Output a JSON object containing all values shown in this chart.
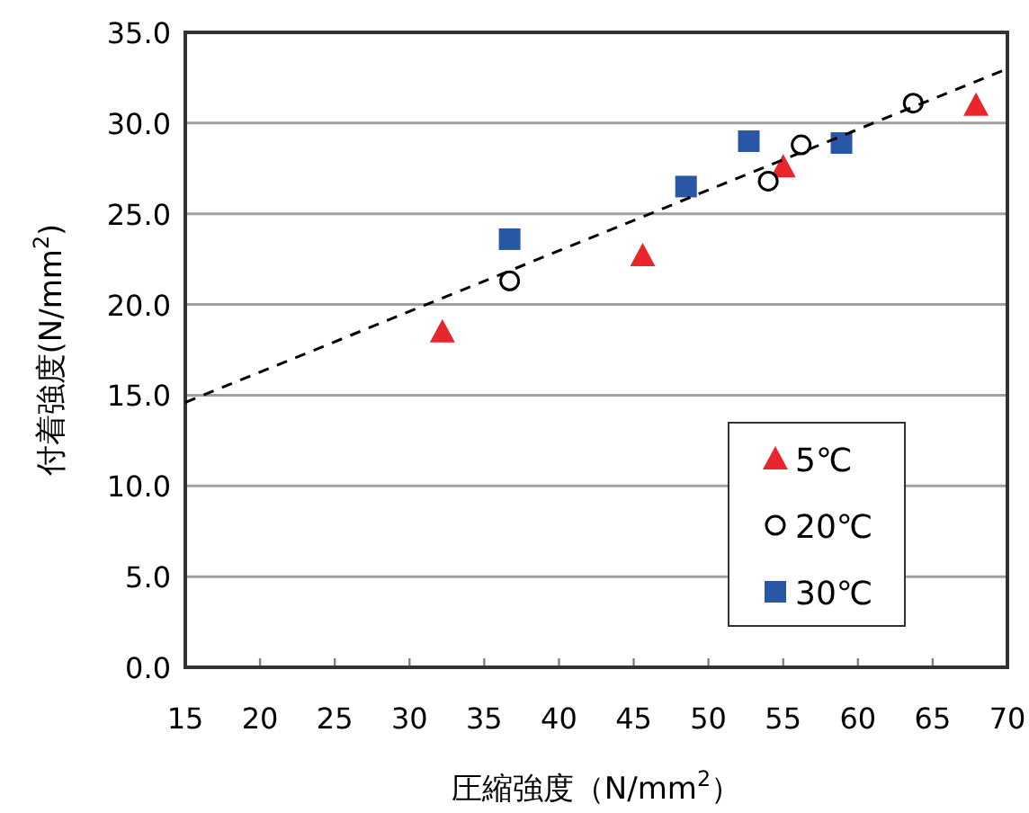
{
  "chart_data": {
    "type": "scatter",
    "xlabel": "圧縮強度（N/mm$^{2}$）",
    "ylabel": "付着強度(N/mm$^{2}$)",
    "xlim": [
      15,
      70
    ],
    "xticks": [
      15,
      20,
      25,
      30,
      35,
      40,
      45,
      50,
      55,
      60,
      65,
      70
    ],
    "ylim": [
      0,
      35
    ],
    "yticks": [
      {
        "value": 0,
        "label": "0.0"
      },
      {
        "value": 5,
        "label": "5.0"
      },
      {
        "value": 10,
        "label": "10.0"
      },
      {
        "value": 15,
        "label": "15.0"
      },
      {
        "value": 20,
        "label": "20.0"
      },
      {
        "value": 25,
        "label": "25.0"
      },
      {
        "value": 30,
        "label": "30.0"
      },
      {
        "value": 35,
        "label": "35.0"
      }
    ],
    "grid": "y",
    "legend": "bottom right",
    "series": [
      {
        "name": "5℃",
        "color": "#e8262b",
        "marker": "triangle",
        "x": [
          32.2,
          45.6,
          55.0,
          67.9
        ],
        "values": [
          18.5,
          22.7,
          27.6,
          31.0
        ]
      },
      {
        "name": "20℃",
        "color": "#000000",
        "marker": "circle",
        "x": [
          36.7,
          54.0,
          56.2,
          63.7
        ],
        "values": [
          21.3,
          26.8,
          28.8,
          31.1
        ]
      },
      {
        "name": "30℃",
        "color": "#2a56a6",
        "marker": "square",
        "x": [
          36.7,
          48.5,
          52.7,
          58.9
        ],
        "values": [
          23.6,
          26.5,
          29.0,
          28.9
        ]
      },
      {
        "type": "line",
        "color": "#000000",
        "marker": "none",
        "line_style": "dashed",
        "x": [
          15,
          70
        ],
        "values": [
          14.6,
          33.0
        ]
      }
    ]
  }
}
